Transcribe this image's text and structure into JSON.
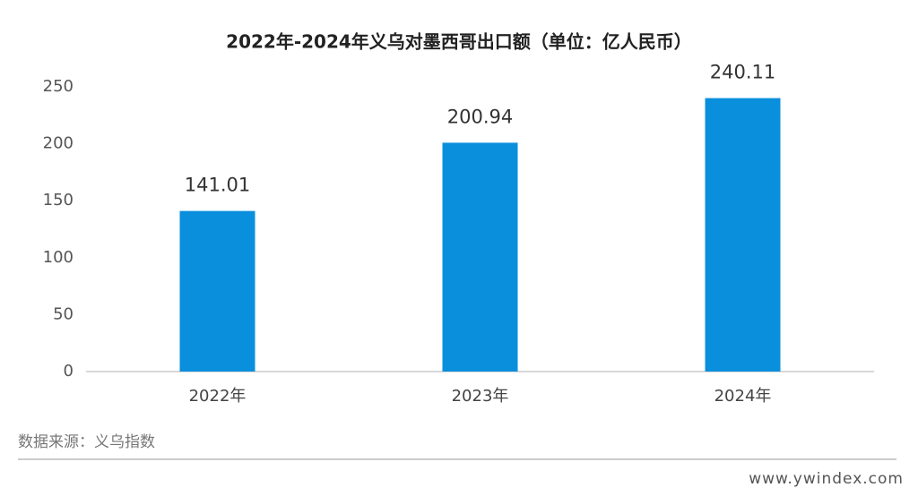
{
  "chart_data": {
    "type": "bar",
    "title": "2022年-2024年义乌对墨西哥出口额（单位：亿人民币）",
    "categories": [
      "2022年",
      "2023年",
      "2024年"
    ],
    "values": [
      141.01,
      200.94,
      240.11
    ],
    "color": "#0a8fdc",
    "ylim": [
      0,
      250
    ],
    "yticks": [
      0,
      50,
      100,
      150,
      200,
      250
    ],
    "grid": false,
    "source": "数据来源：义乌指数",
    "website": "www.ywindex.com"
  }
}
